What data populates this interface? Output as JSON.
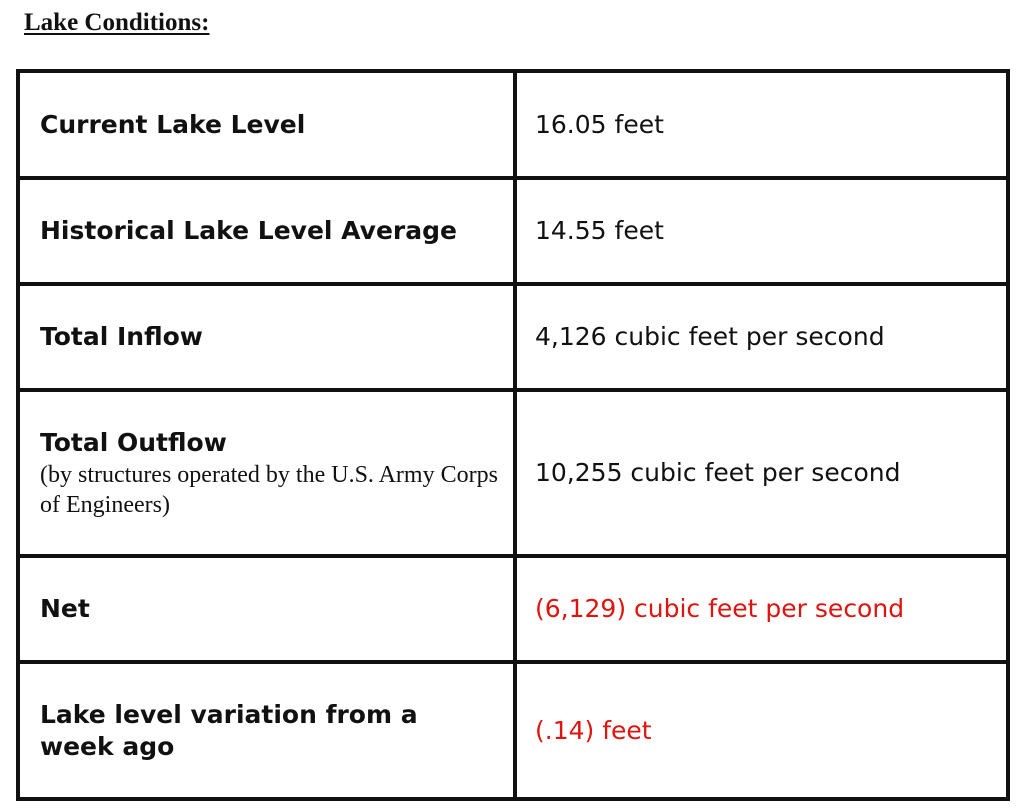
{
  "heading": "Lake Conditions:",
  "rows": [
    {
      "label": "Current Lake Level",
      "sublabel": "",
      "value": "16.05 feet",
      "negative": false
    },
    {
      "label": "Historical Lake Level Average",
      "sublabel": "",
      "value": "14.55 feet",
      "negative": false
    },
    {
      "label": "Total Inflow",
      "sublabel": "",
      "value": "4,126 cubic feet per second",
      "negative": false
    },
    {
      "label": "Total Outflow",
      "sublabel": "(by structures operated by the U.S. Army Corps of Engineers)",
      "value": "10,255 cubic feet per second",
      "negative": false
    },
    {
      "label": "Net",
      "sublabel": "",
      "value": "(6,129) cubic feet per second",
      "negative": true
    },
    {
      "label": "Lake level variation from a week ago",
      "sublabel": "",
      "value": "(.14) feet",
      "negative": true
    }
  ],
  "colors": {
    "text": "#111111",
    "negative": "#e0140f",
    "border": "#111111"
  }
}
